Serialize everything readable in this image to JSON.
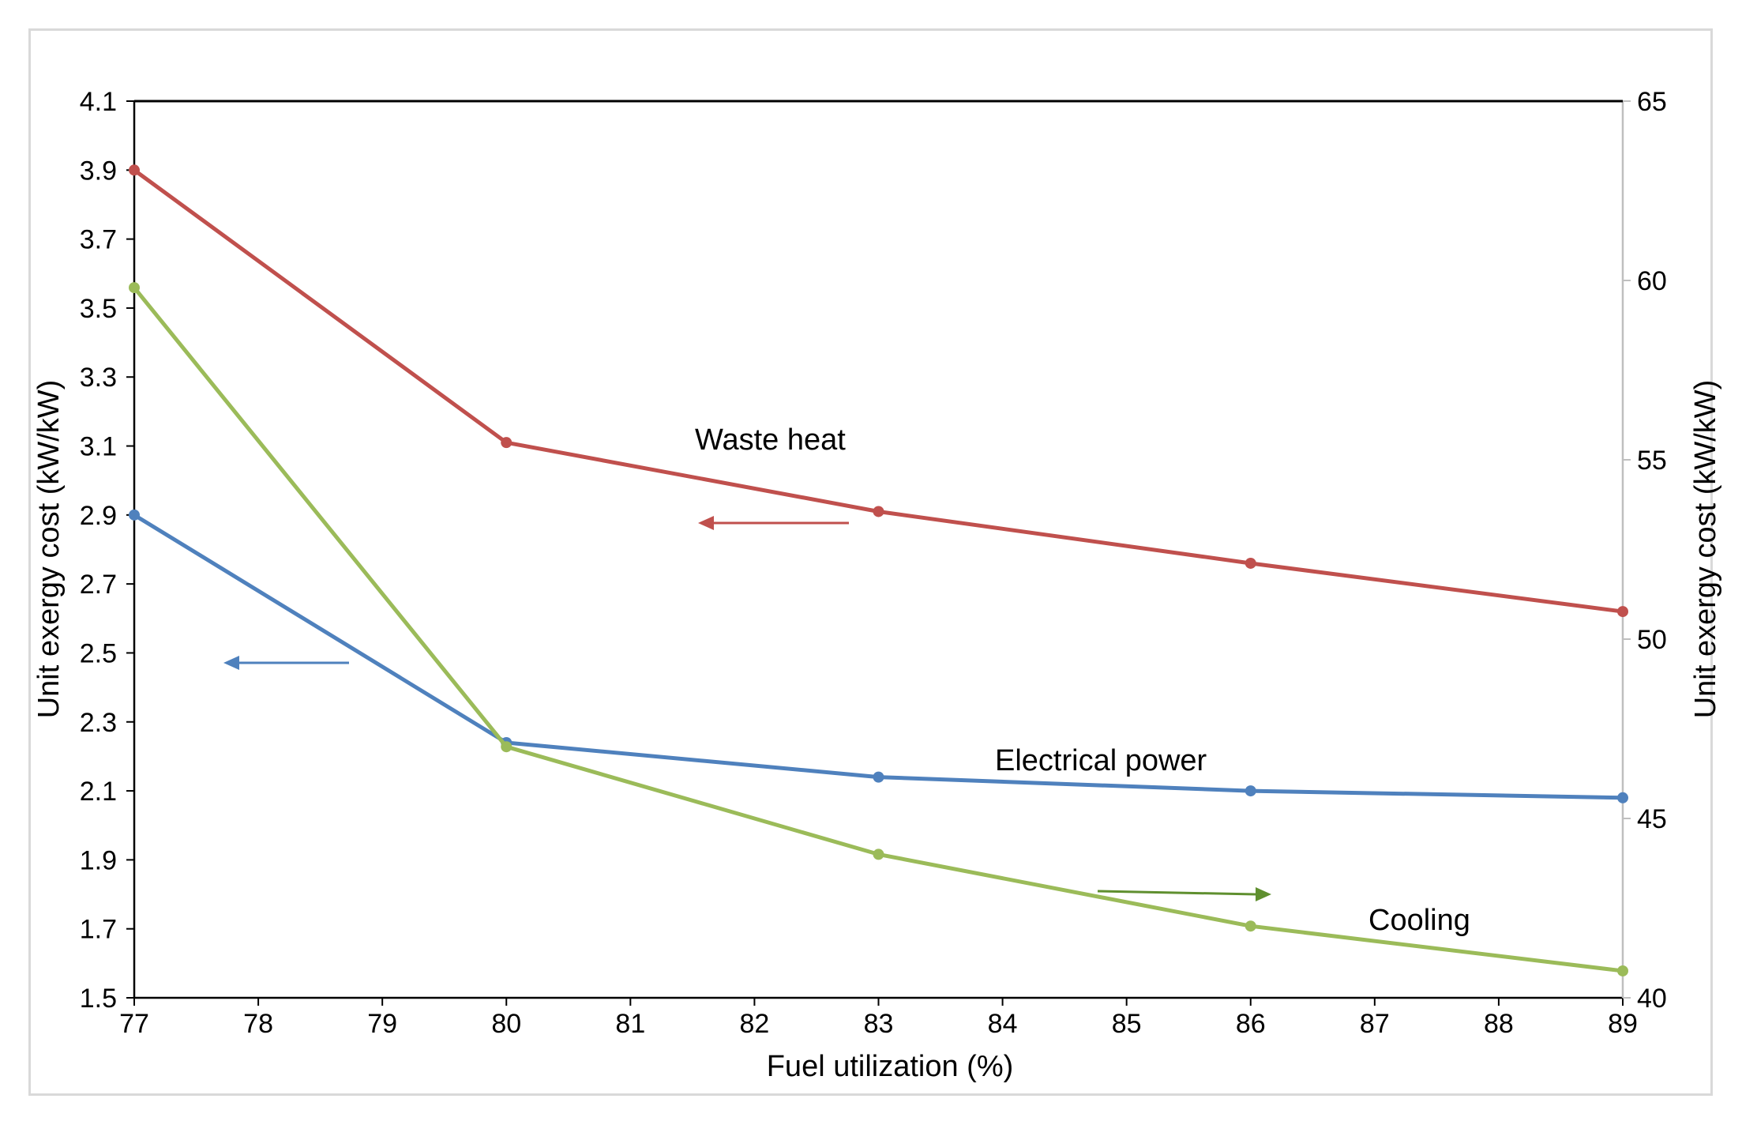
{
  "chart_data": {
    "type": "line",
    "title": "",
    "xlabel": "Fuel utilization (%)",
    "ylabel_left": "Unit exergy cost (kW/kW)",
    "ylabel_right": "Unit exergy cost (kW/kW)",
    "xlim": [
      77,
      89
    ],
    "ylim_left": [
      1.5,
      4.1
    ],
    "ylim_right": [
      40,
      65
    ],
    "x_ticks": [
      "77",
      "78",
      "79",
      "80",
      "81",
      "82",
      "83",
      "84",
      "85",
      "86",
      "87",
      "88",
      "89"
    ],
    "y_left_ticks": [
      "1.5",
      "1.7",
      "1.9",
      "2.1",
      "2.3",
      "2.5",
      "2.7",
      "2.9",
      "3.1",
      "3.3",
      "3.5",
      "3.7",
      "3.9",
      "4.1"
    ],
    "y_right_ticks": [
      "40",
      "45",
      "50",
      "55",
      "60",
      "65"
    ],
    "grid": false,
    "series": [
      {
        "name": "Waste heat",
        "axis": "left",
        "color": "#c0504d",
        "x": [
          77,
          80,
          83,
          86,
          89
        ],
        "values": [
          3.9,
          3.11,
          2.91,
          2.76,
          2.62
        ],
        "direction": "left"
      },
      {
        "name": "Electrical power",
        "axis": "left",
        "color": "#4f81bd",
        "x": [
          77,
          80,
          83,
          86,
          89
        ],
        "values": [
          2.9,
          2.24,
          2.14,
          2.1,
          2.08
        ],
        "direction": "left"
      },
      {
        "name": "Cooling",
        "axis": "right",
        "color": "#9bbb59",
        "x": [
          77,
          80,
          83,
          86,
          89
        ],
        "values": [
          59.8,
          47.0,
          44.0,
          42.0,
          40.75
        ],
        "direction": "right"
      }
    ],
    "arrow_color_right": "#5f8f2f"
  }
}
